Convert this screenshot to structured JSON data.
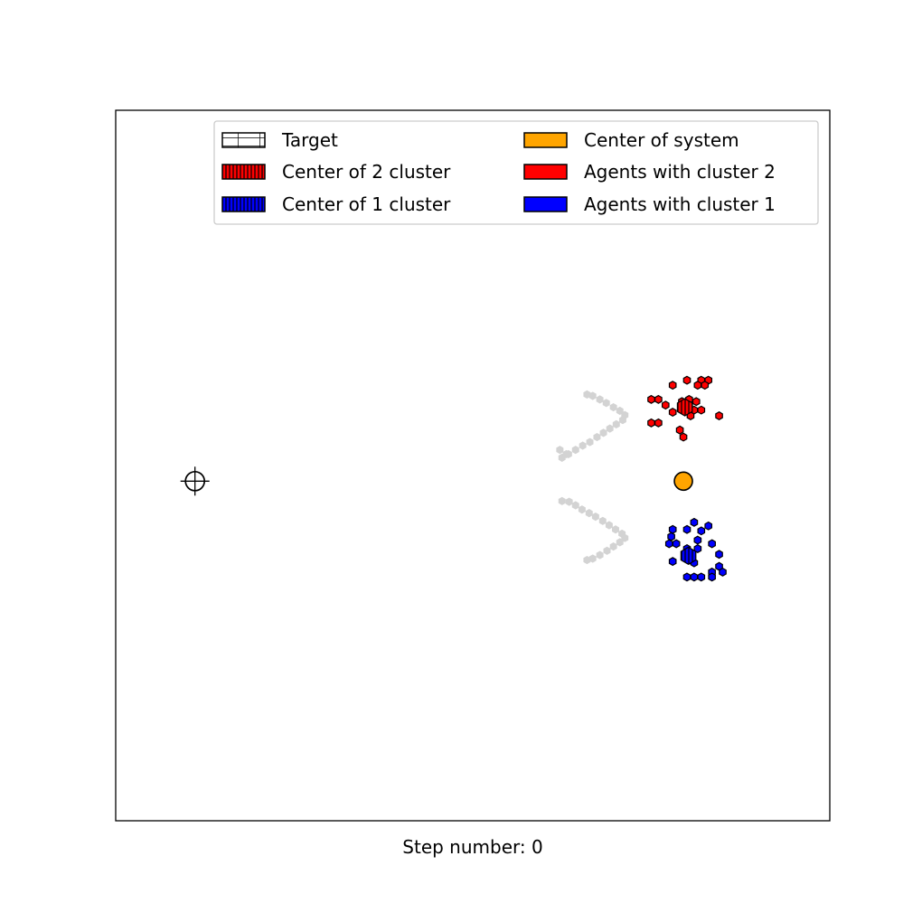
{
  "chart_data": {
    "type": "scatter",
    "xlabel": "Step number: 0",
    "ylabel": "",
    "title": "",
    "xlim": [
      0,
      100
    ],
    "ylim": [
      0,
      100
    ],
    "grid": false,
    "ticks": false,
    "legend_position": "top-right",
    "legend_columns": 2,
    "legend": [
      {
        "label": "Target",
        "swatch": "target",
        "face": "#ffffff",
        "hatch": "grid"
      },
      {
        "label": "Center of 2 cluster",
        "swatch": "cluster2-center",
        "face": "#ff0000",
        "hatch": "vertical"
      },
      {
        "label": "Center of 1 cluster",
        "swatch": "cluster1-center",
        "face": "#0000ff",
        "hatch": "vertical"
      },
      {
        "label": "Center of system",
        "swatch": "system-center",
        "face": "#ffa500",
        "hatch": "none"
      },
      {
        "label": "Agents with cluster 2",
        "swatch": "cluster2-agents",
        "face": "#ff0000",
        "hatch": "none"
      },
      {
        "label": "Agents with cluster 1",
        "swatch": "cluster1-agents",
        "face": "#0000ff",
        "hatch": "none"
      }
    ],
    "target": {
      "x": 11.1,
      "y": 47.8,
      "marker": "crosshair-circle",
      "color": "#000000"
    },
    "system_center": {
      "x": 79.5,
      "y": 47.8,
      "color": "#ffa500"
    },
    "cluster_centers": [
      {
        "cluster": 2,
        "x": 79.7,
        "y": 58.2,
        "color": "#ff0000"
      },
      {
        "cluster": 1,
        "x": 80.2,
        "y": 37.3,
        "color": "#0000ff"
      }
    ],
    "series": [
      {
        "cluster": 2,
        "color": "#ff0000",
        "marker": "hexagon",
        "points": [
          [
            80.0,
            62.0
          ],
          [
            82.0,
            62.0
          ],
          [
            83.0,
            62.0
          ],
          [
            78.0,
            61.3
          ],
          [
            81.5,
            61.3
          ],
          [
            82.5,
            61.3
          ],
          [
            75.0,
            59.3
          ],
          [
            76.0,
            59.3
          ],
          [
            79.3,
            59.0
          ],
          [
            80.3,
            59.3
          ],
          [
            81.3,
            59.0
          ],
          [
            77.0,
            58.5
          ],
          [
            80.3,
            58.3
          ],
          [
            79.5,
            57.8
          ],
          [
            81.0,
            57.8
          ],
          [
            82.0,
            57.8
          ],
          [
            78.0,
            57.5
          ],
          [
            80.5,
            57.0
          ],
          [
            84.5,
            57.0
          ],
          [
            75.0,
            56.0
          ],
          [
            76.0,
            56.0
          ],
          [
            79.0,
            55.0
          ],
          [
            79.5,
            54.0
          ]
        ]
      },
      {
        "cluster": 1,
        "color": "#0000ff",
        "marker": "hexagon",
        "points": [
          [
            81.0,
            42.0
          ],
          [
            83.0,
            41.5
          ],
          [
            78.0,
            41.0
          ],
          [
            80.0,
            41.0
          ],
          [
            82.0,
            40.8
          ],
          [
            77.8,
            40.0
          ],
          [
            81.5,
            39.5
          ],
          [
            77.5,
            39.0
          ],
          [
            78.5,
            39.0
          ],
          [
            83.5,
            39.0
          ],
          [
            80.0,
            38.3
          ],
          [
            81.5,
            38.3
          ],
          [
            80.0,
            37.5
          ],
          [
            84.5,
            37.5
          ],
          [
            80.5,
            36.7
          ],
          [
            78.0,
            36.5
          ],
          [
            81.0,
            36.3
          ],
          [
            84.5,
            35.8
          ],
          [
            83.5,
            35.0
          ],
          [
            85.0,
            35.0
          ],
          [
            80.0,
            34.3
          ],
          [
            81.0,
            34.3
          ],
          [
            82.0,
            34.3
          ],
          [
            83.5,
            34.3
          ]
        ]
      },
      {
        "name": "",
        "color": "#d3d3d3",
        "marker": "hexagon",
        "points": [
          [
            66.0,
            60.0
          ],
          [
            66.8,
            59.8
          ],
          [
            67.8,
            59.3
          ],
          [
            68.7,
            58.8
          ],
          [
            69.7,
            58.2
          ],
          [
            70.6,
            57.7
          ],
          [
            71.3,
            57.1
          ],
          [
            71.0,
            56.4
          ],
          [
            70.1,
            55.8
          ],
          [
            69.2,
            55.2
          ],
          [
            68.3,
            54.6
          ],
          [
            67.4,
            54.0
          ],
          [
            66.4,
            53.3
          ],
          [
            65.4,
            52.8
          ],
          [
            64.4,
            52.2
          ],
          [
            63.4,
            51.6
          ],
          [
            62.5,
            51.1
          ],
          [
            62.2,
            52.2
          ],
          [
            63.1,
            51.6
          ],
          [
            62.5,
            45.0
          ],
          [
            63.5,
            44.9
          ],
          [
            64.4,
            44.4
          ],
          [
            65.3,
            43.8
          ],
          [
            66.3,
            43.3
          ],
          [
            67.2,
            42.8
          ],
          [
            68.2,
            42.2
          ],
          [
            69.1,
            41.6
          ],
          [
            70.0,
            41.0
          ],
          [
            70.9,
            40.4
          ],
          [
            71.3,
            39.8
          ],
          [
            70.6,
            39.2
          ],
          [
            69.7,
            38.6
          ],
          [
            68.8,
            38.0
          ],
          [
            67.8,
            37.4
          ],
          [
            66.8,
            36.9
          ],
          [
            66.0,
            36.7
          ]
        ]
      }
    ]
  }
}
